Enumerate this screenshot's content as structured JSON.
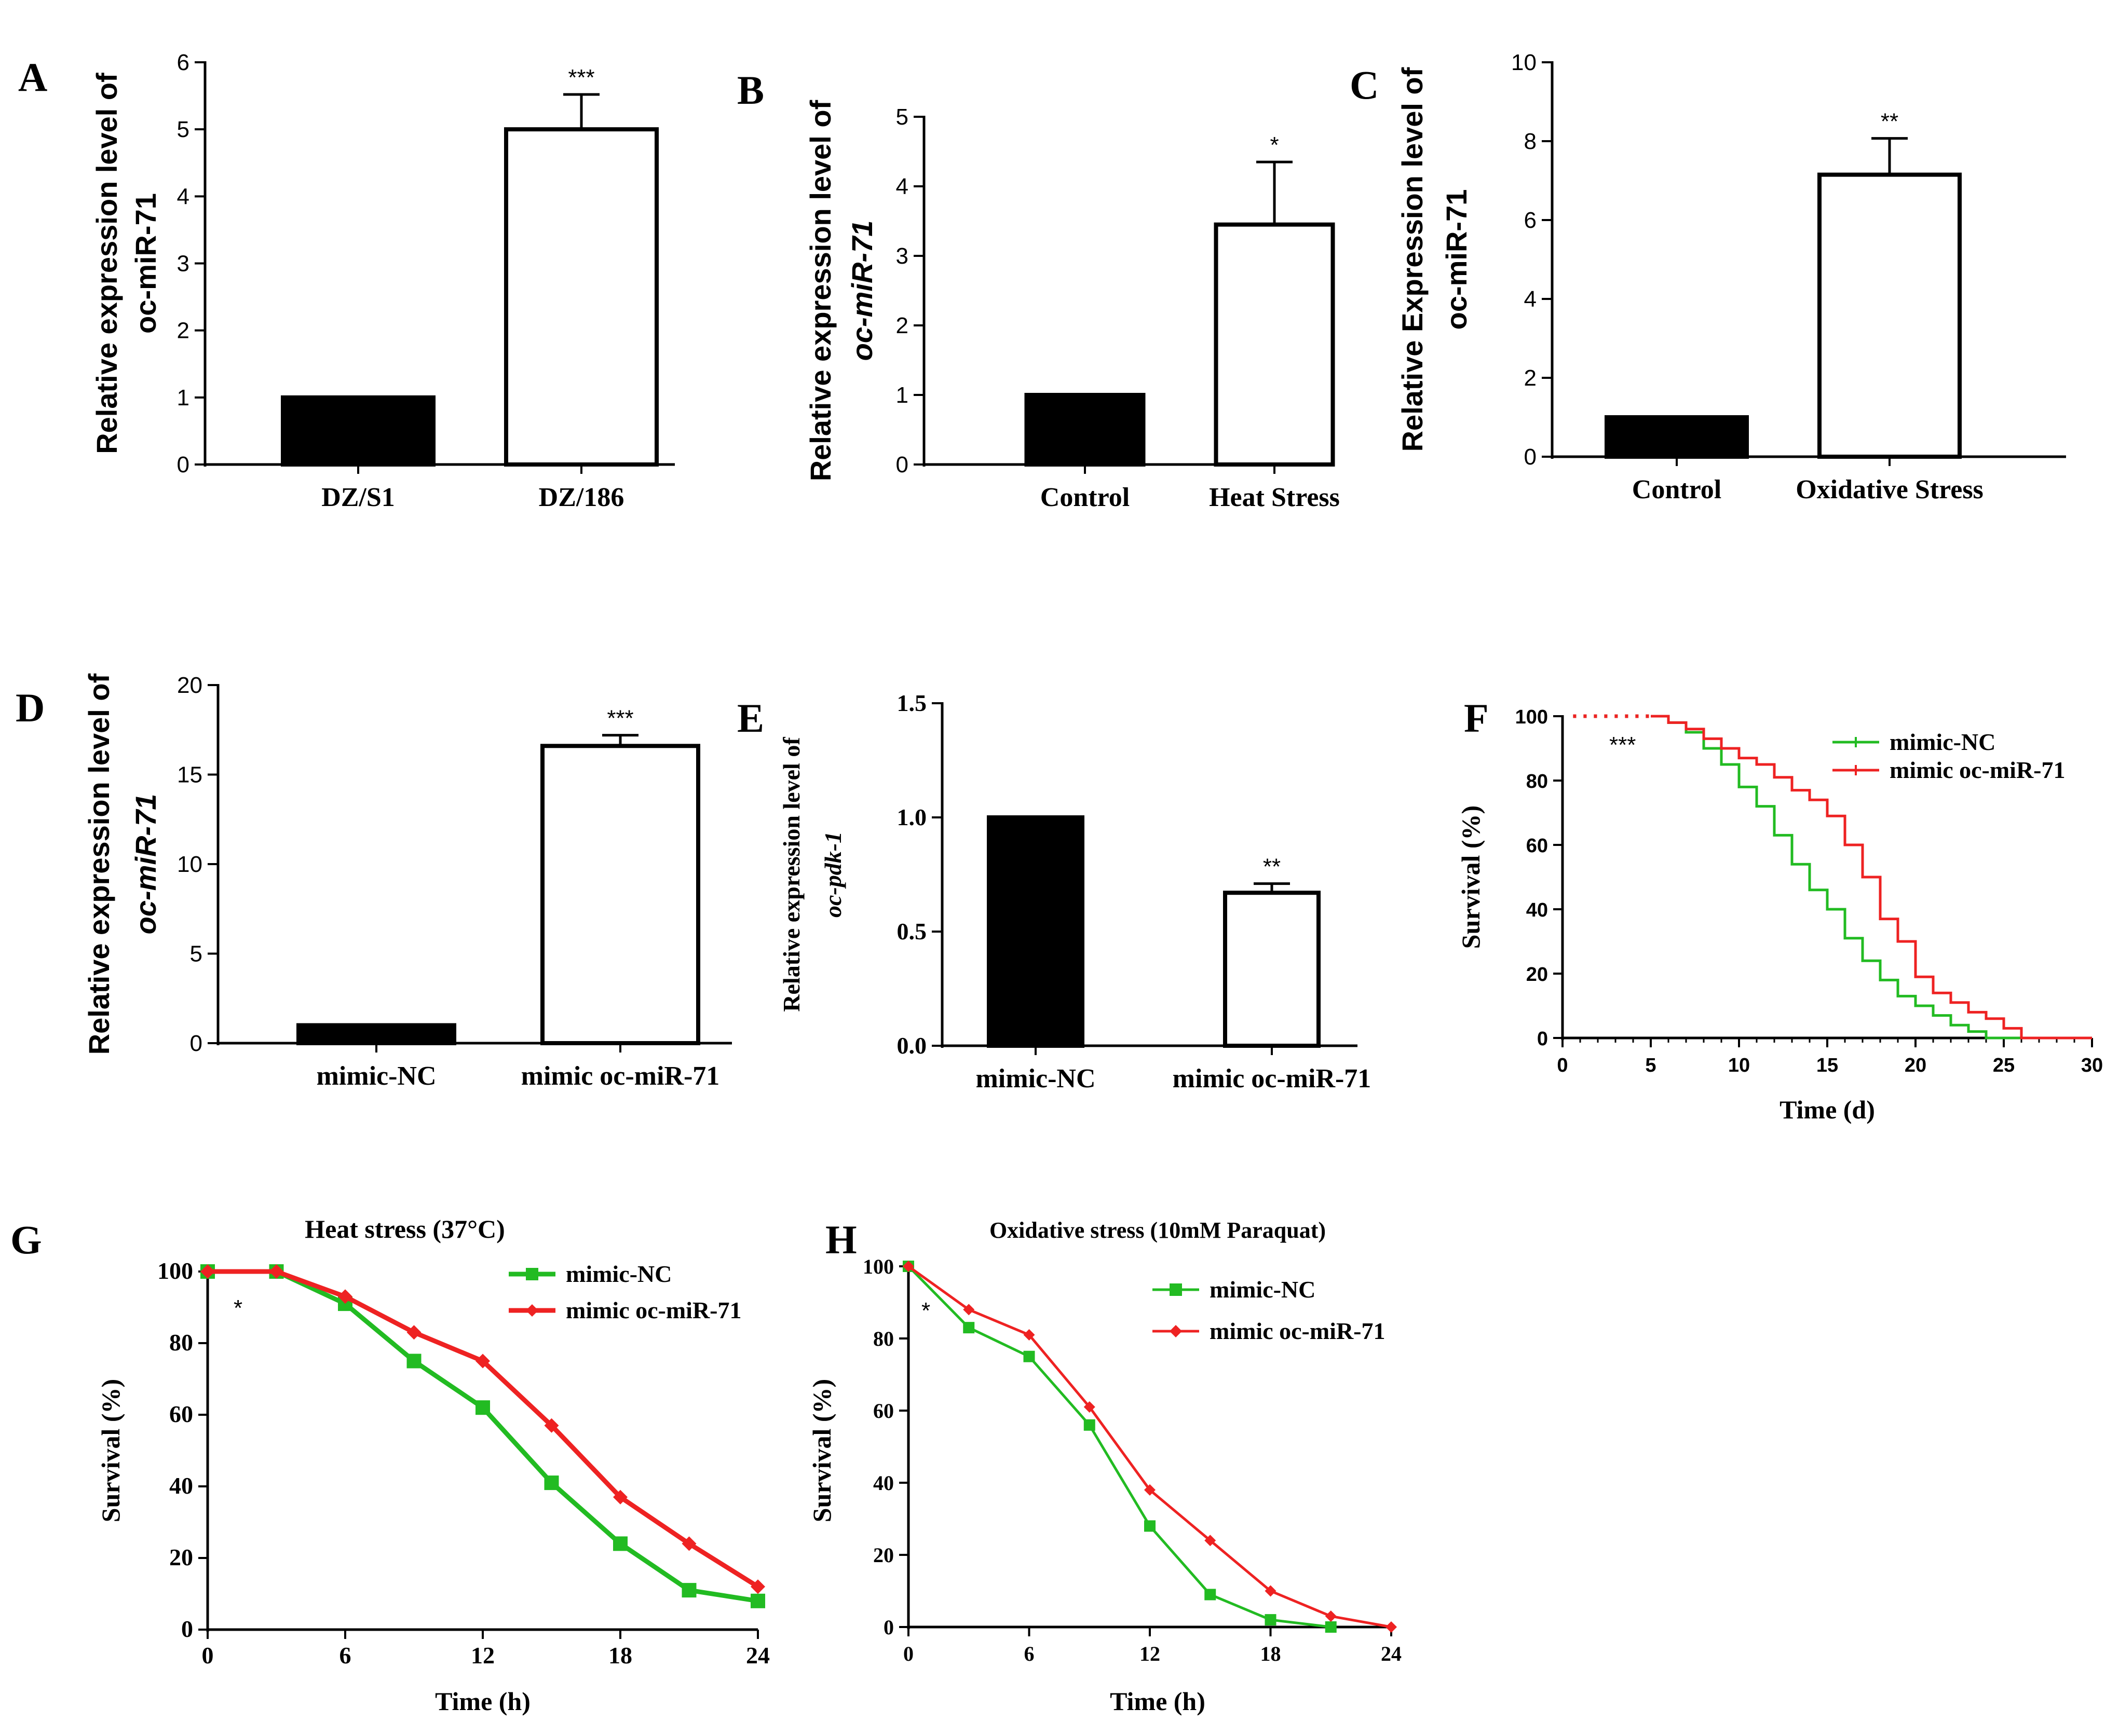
{
  "figure_panels": [
    "A",
    "B",
    "C",
    "D",
    "E",
    "F",
    "G",
    "H"
  ],
  "colors": {
    "mimic_nc": "#22bb22",
    "mimic_oc": "#ee2222",
    "bar_dark": "#000000",
    "bar_light": "#ffffff"
  },
  "chart_data": [
    {
      "panel": "A",
      "type": "bar",
      "ylabel_lines": [
        "Relative expression level of",
        "oc-miR-71"
      ],
      "categories": [
        "DZ/S1",
        "DZ/186"
      ],
      "values": [
        1.0,
        5.0
      ],
      "errors": [
        0,
        0.52
      ],
      "fills": [
        "#000000",
        "#ffffff"
      ],
      "significance": [
        "",
        "***"
      ],
      "ylim": [
        0,
        6
      ],
      "yticks": [
        "0",
        "1",
        "2",
        "3",
        "4",
        "5",
        "6"
      ]
    },
    {
      "panel": "B",
      "type": "bar",
      "ylabel_lines": [
        "Relative expression level of",
        "oc-miR-71"
      ],
      "categories": [
        "Control",
        "Heat Stress"
      ],
      "values": [
        1.0,
        3.45
      ],
      "errors": [
        0,
        0.9
      ],
      "fills": [
        "#000000",
        "#ffffff"
      ],
      "significance": [
        "",
        "*"
      ],
      "ylim": [
        0,
        5
      ],
      "yticks": [
        "0",
        "1",
        "2",
        "3",
        "4",
        "5"
      ]
    },
    {
      "panel": "C",
      "type": "bar",
      "ylabel_lines": [
        "Relative Expression level of",
        "oc-miR-71"
      ],
      "categories": [
        "Control",
        "Oxidative Stress"
      ],
      "values": [
        1.0,
        7.15
      ],
      "errors": [
        0,
        0.92
      ],
      "fills": [
        "#000000",
        "#ffffff"
      ],
      "significance": [
        "",
        "**"
      ],
      "ylim": [
        0,
        10
      ],
      "yticks": [
        "0",
        "2",
        "4",
        "6",
        "8",
        "10"
      ]
    },
    {
      "panel": "D",
      "type": "bar",
      "ylabel_lines": [
        "Relative expression level of",
        "oc-miR-71"
      ],
      "categories": [
        "mimic-NC",
        "mimic oc-miR-71"
      ],
      "values": [
        1.0,
        16.6
      ],
      "errors": [
        0,
        0.6
      ],
      "fills": [
        "#000000",
        "#ffffff"
      ],
      "significance": [
        "",
        "***"
      ],
      "ylim": [
        0,
        20
      ],
      "yticks": [
        "0",
        "5",
        "10",
        "15",
        "20"
      ]
    },
    {
      "panel": "E",
      "type": "bar",
      "ylabel_lines": [
        "Relative expression level of",
        "oc-pdk-1"
      ],
      "categories": [
        "mimic-NC",
        "mimic oc-miR-71"
      ],
      "values": [
        1.0,
        0.67
      ],
      "errors": [
        0,
        0.04
      ],
      "fills": [
        "#000000",
        "#ffffff"
      ],
      "significance": [
        "",
        "**"
      ],
      "ylim": [
        0,
        1.5
      ],
      "yticks": [
        "0.0",
        "0.5",
        "1.0",
        "1.5"
      ]
    },
    {
      "panel": "F",
      "type": "line",
      "ylabel": "Survival (%)",
      "xlabel": "Time (d)",
      "significance": "***",
      "xlim": [
        0,
        30
      ],
      "ylim": [
        0,
        100
      ],
      "xticks": [
        "0",
        "5",
        "10",
        "15",
        "20",
        "25",
        "30"
      ],
      "yticks": [
        "0",
        "20",
        "40",
        "60",
        "80",
        "100"
      ],
      "series": [
        {
          "name": "mimic-NC",
          "color": "#22bb22",
          "x": [
            5,
            6,
            7,
            8,
            9,
            10,
            11,
            12,
            13,
            14,
            15,
            16,
            17,
            18,
            19,
            20,
            21,
            22,
            23,
            24
          ],
          "y": [
            100,
            98,
            95,
            90,
            85,
            78,
            72,
            63,
            54,
            46,
            40,
            31,
            24,
            18,
            13,
            10,
            7,
            4,
            2,
            0
          ]
        },
        {
          "name": "mimic oc-miR-71",
          "color": "#ee2222",
          "x": [
            5,
            6,
            7,
            8,
            9,
            10,
            11,
            12,
            13,
            14,
            15,
            16,
            17,
            18,
            19,
            20,
            21,
            22,
            23,
            24,
            25,
            26
          ],
          "y": [
            100,
            98,
            96,
            93,
            90,
            87,
            85,
            81,
            77,
            74,
            69,
            60,
            50,
            37,
            30,
            19,
            14,
            11,
            8,
            6,
            3,
            0
          ]
        }
      ]
    },
    {
      "panel": "G",
      "type": "line",
      "title": "Heat stress (37°C)",
      "ylabel": "Survival (%)",
      "xlabel": "Time (h)",
      "significance": "*",
      "xlim": [
        0,
        24
      ],
      "ylim": [
        0,
        100
      ],
      "xticks": [
        "0",
        "6",
        "12",
        "18",
        "24"
      ],
      "yticks": [
        "0",
        "20",
        "40",
        "60",
        "80",
        "100"
      ],
      "series": [
        {
          "name": "mimic-NC",
          "color": "#22bb22",
          "marker": "square",
          "x": [
            0,
            3,
            6,
            9,
            12,
            15,
            18,
            21,
            24
          ],
          "y": [
            100,
            100,
            91,
            75,
            62,
            41,
            24,
            11,
            8
          ]
        },
        {
          "name": "mimic oc-miR-71",
          "color": "#ee2222",
          "marker": "diamond",
          "x": [
            0,
            3,
            6,
            9,
            12,
            15,
            18,
            21,
            24
          ],
          "y": [
            100,
            100,
            93,
            83,
            75,
            57,
            37,
            24,
            12
          ]
        }
      ]
    },
    {
      "panel": "H",
      "type": "line",
      "title": "Oxidative stress (10mM Paraquat)",
      "ylabel": "Survival (%)",
      "xlabel": "Time (h)",
      "significance": "*",
      "xlim": [
        0,
        24
      ],
      "ylim": [
        0,
        100
      ],
      "xticks": [
        "0",
        "6",
        "12",
        "18",
        "24"
      ],
      "yticks": [
        "0",
        "20",
        "40",
        "60",
        "80",
        "100"
      ],
      "series": [
        {
          "name": "mimic-NC",
          "color": "#22bb22",
          "marker": "square",
          "x": [
            0,
            3,
            6,
            9,
            12,
            15,
            18,
            21
          ],
          "y": [
            100,
            83,
            75,
            56,
            28,
            9,
            2,
            0
          ]
        },
        {
          "name": "mimic oc-miR-71",
          "color": "#ee2222",
          "marker": "diamond",
          "x": [
            0,
            3,
            6,
            9,
            12,
            15,
            18,
            21,
            24
          ],
          "y": [
            100,
            88,
            81,
            61,
            38,
            24,
            10,
            3,
            0
          ]
        }
      ]
    }
  ]
}
